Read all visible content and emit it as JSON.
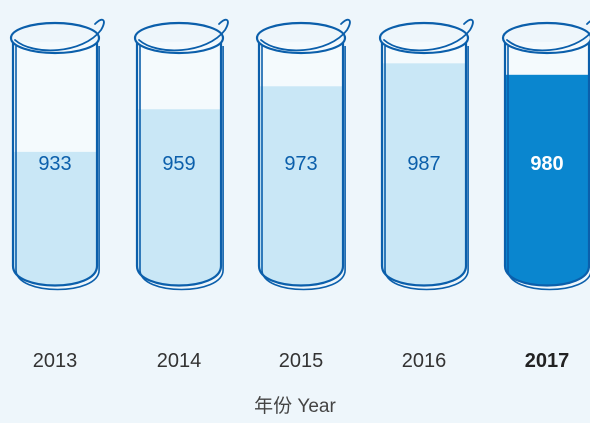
{
  "chart_data": {
    "type": "bar",
    "categories": [
      "2013",
      "2014",
      "2015",
      "2016",
      "2017"
    ],
    "values": [
      933,
      959,
      973,
      987,
      980
    ],
    "highlight_index": 4,
    "xlabel": "年份 Year",
    "ylabel": "",
    "title": "",
    "ylim": [
      850,
      1000
    ],
    "legend": "none",
    "grid": false
  },
  "colors": {
    "background": "#eef6fb",
    "fill_light": "#c9e7f6",
    "fill_empty": "#f4fafd",
    "fill_highlight": "#0a86cf",
    "outline": "#0b5fab",
    "value_text": "#0b5fab",
    "value_text_highlight": "#ffffff"
  }
}
